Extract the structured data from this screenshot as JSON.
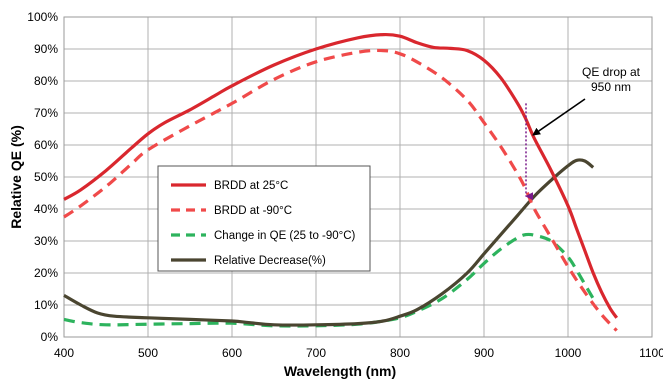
{
  "chart_data": {
    "type": "line",
    "xlabel": "Wavelength (nm)",
    "ylabel": "Relative QE (%)",
    "xlim": [
      400,
      1100
    ],
    "ylim": [
      0,
      100
    ],
    "x_ticks": [
      "400",
      "500",
      "600",
      "700",
      "800",
      "900",
      "1000",
      "1100"
    ],
    "y_ticks": [
      "0%",
      "10%",
      "20%",
      "30%",
      "40%",
      "50%",
      "60%",
      "70%",
      "80%",
      "90%",
      "100%"
    ],
    "grid": true,
    "legend_position": "center-left",
    "series": [
      {
        "name": "BRDD at 25°C",
        "color": "#d9272e",
        "style": "solid",
        "points": [
          [
            400,
            43
          ],
          [
            420,
            46
          ],
          [
            450,
            52
          ],
          [
            480,
            59
          ],
          [
            500,
            63.5
          ],
          [
            520,
            67
          ],
          [
            550,
            71
          ],
          [
            580,
            75.5
          ],
          [
            600,
            78.5
          ],
          [
            650,
            85
          ],
          [
            700,
            90
          ],
          [
            750,
            93.5
          ],
          [
            780,
            94.5
          ],
          [
            800,
            94
          ],
          [
            820,
            92
          ],
          [
            840,
            90.5
          ],
          [
            860,
            90.2
          ],
          [
            880,
            89.5
          ],
          [
            900,
            86.5
          ],
          [
            920,
            81
          ],
          [
            940,
            73
          ],
          [
            950,
            68
          ],
          [
            960,
            62
          ],
          [
            980,
            52
          ],
          [
            1000,
            41
          ],
          [
            1010,
            34
          ],
          [
            1020,
            27
          ],
          [
            1030,
            20
          ],
          [
            1040,
            14
          ],
          [
            1050,
            9
          ],
          [
            1058,
            6
          ]
        ]
      },
      {
        "name": "BRDD at -90°C",
        "color": "#f04a4a",
        "style": "dashed",
        "points": [
          [
            400,
            37.5
          ],
          [
            420,
            41
          ],
          [
            450,
            47
          ],
          [
            480,
            54
          ],
          [
            500,
            58.5
          ],
          [
            550,
            66
          ],
          [
            600,
            73
          ],
          [
            650,
            80.5
          ],
          [
            700,
            86
          ],
          [
            750,
            89
          ],
          [
            780,
            89.5
          ],
          [
            800,
            88.5
          ],
          [
            820,
            86
          ],
          [
            850,
            81
          ],
          [
            880,
            74
          ],
          [
            900,
            67
          ],
          [
            920,
            59.5
          ],
          [
            940,
            51
          ],
          [
            950,
            46
          ],
          [
            960,
            40
          ],
          [
            980,
            31
          ],
          [
            1000,
            22
          ],
          [
            1020,
            14
          ],
          [
            1040,
            7
          ],
          [
            1058,
            2
          ]
        ]
      },
      {
        "name": "Change in QE (25 to -90°C)",
        "color": "#2db35d",
        "style": "dashed",
        "points": [
          [
            400,
            5.5
          ],
          [
            420,
            4.5
          ],
          [
            450,
            3.8
          ],
          [
            500,
            4
          ],
          [
            550,
            4.2
          ],
          [
            600,
            4.3
          ],
          [
            650,
            3.5
          ],
          [
            700,
            3.5
          ],
          [
            750,
            4
          ],
          [
            780,
            5
          ],
          [
            800,
            6
          ],
          [
            820,
            8
          ],
          [
            850,
            12
          ],
          [
            880,
            18
          ],
          [
            900,
            23
          ],
          [
            920,
            27.5
          ],
          [
            940,
            31
          ],
          [
            950,
            32
          ],
          [
            960,
            31.8
          ],
          [
            980,
            30
          ],
          [
            1000,
            25
          ],
          [
            1010,
            21
          ],
          [
            1020,
            16.5
          ],
          [
            1030,
            12
          ]
        ]
      },
      {
        "name": "Relative Decrease(%)",
        "color": "#4a4530",
        "style": "solid",
        "points": [
          [
            400,
            13
          ],
          [
            420,
            10
          ],
          [
            440,
            7.5
          ],
          [
            460,
            6.5
          ],
          [
            500,
            6
          ],
          [
            550,
            5.5
          ],
          [
            600,
            5
          ],
          [
            620,
            4.5
          ],
          [
            650,
            3.8
          ],
          [
            700,
            3.8
          ],
          [
            750,
            4.2
          ],
          [
            780,
            5
          ],
          [
            800,
            6.5
          ],
          [
            820,
            8.5
          ],
          [
            850,
            13.5
          ],
          [
            880,
            20
          ],
          [
            900,
            26
          ],
          [
            920,
            32
          ],
          [
            940,
            38
          ],
          [
            960,
            44
          ],
          [
            980,
            49
          ],
          [
            1000,
            53.5
          ],
          [
            1010,
            55.2
          ],
          [
            1020,
            55
          ],
          [
            1030,
            53
          ]
        ]
      }
    ],
    "annotations": [
      {
        "text_lines": [
          "QE drop at",
          "950 nm"
        ],
        "color": "#000000"
      },
      {
        "type": "dotted-arrow",
        "x": 950,
        "from_y": 73,
        "to_y": 44,
        "color": "#7a1a8a"
      }
    ]
  }
}
